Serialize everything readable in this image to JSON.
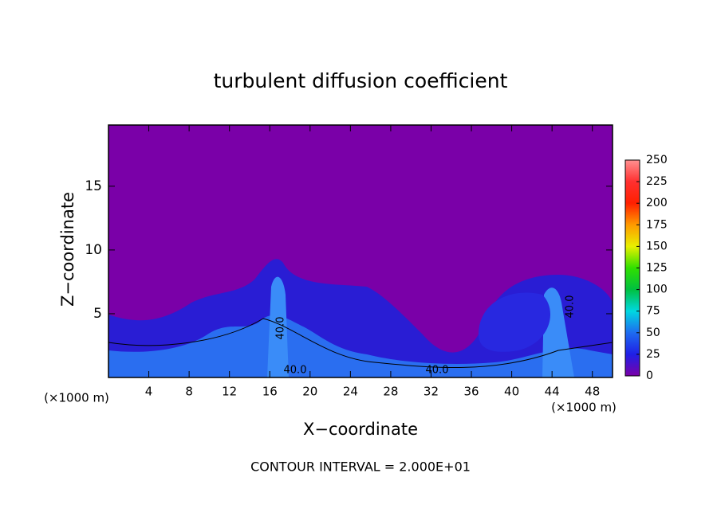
{
  "chart_data": {
    "type": "heatmap",
    "title": "turbulent diffusion coefficient",
    "x_label": "X−coordinate",
    "y_label": "Z−coordinate",
    "x_unit": "(×1000 m)",
    "footer": "CONTOUR INTERVAL = 2.000E+01",
    "xlim": [
      0,
      50
    ],
    "xticks": [
      4,
      8,
      12,
      16,
      20,
      24,
      28,
      32,
      36,
      40,
      44,
      48
    ],
    "ylim": [
      0,
      19.8
    ],
    "yticks": [
      5,
      10,
      15
    ],
    "clim": [
      0,
      250
    ],
    "cticks": [
      0,
      25,
      50,
      75,
      100,
      125,
      150,
      175,
      200,
      225,
      250
    ],
    "colors": [
      "#7a00a8",
      "#1f1fe6",
      "#1e6cf0",
      "#00d8e0",
      "#00c040",
      "#30e000",
      "#e8f000",
      "#ff9a00",
      "#ff2000",
      "#ff3030",
      "#ff9090"
    ],
    "contour_labels": [
      "40.0",
      "40.0",
      "40.0",
      "40.0"
    ]
  }
}
